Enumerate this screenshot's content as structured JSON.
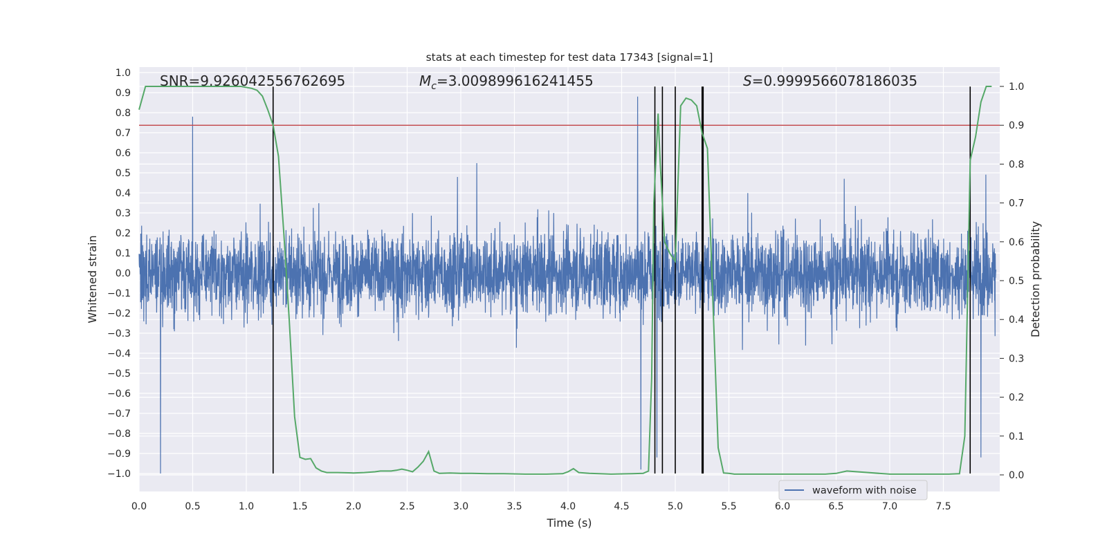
{
  "chart_data": {
    "type": "line",
    "title": "stats at each timestep for test data 17343 [signal=1]",
    "xlabel": "Time (s)",
    "ylabel": "Whitened strain",
    "y2label": "Detection probability",
    "xlim": [
      0.0,
      8.0
    ],
    "ylim": [
      -1.1,
      1.02
    ],
    "y2lim": [
      -0.045,
      1.04
    ],
    "x_ticks": [
      "0.0",
      "0.5",
      "1.0",
      "1.5",
      "2.0",
      "2.5",
      "3.0",
      "3.5",
      "4.0",
      "4.5",
      "5.0",
      "5.5",
      "6.0",
      "6.5",
      "7.0",
      "7.5"
    ],
    "y_ticks": [
      "1.0",
      "0.9",
      "0.8",
      "0.7",
      "0.6",
      "0.5",
      "0.4",
      "0.3",
      "0.2",
      "0.1",
      "0.0",
      "−0.1",
      "−0.2",
      "−0.3",
      "−0.4",
      "−0.5",
      "−0.6",
      "−0.7",
      "−0.8",
      "−0.9",
      "−1.0"
    ],
    "y2_ticks": [
      "1.0",
      "0.9",
      "0.8",
      "0.7",
      "0.6",
      "0.5",
      "0.4",
      "0.3",
      "0.2",
      "0.1",
      "0.0"
    ],
    "annotations": {
      "snr": "SNR=9.926042556762695",
      "mc_symbol": "M",
      "mc_sub": "c",
      "mc_value": "=3.009899616241455",
      "s_symbol": "S",
      "s_value": "=0.9999566078186035"
    },
    "legend": {
      "position": "lower-right",
      "label": "waveform with noise"
    },
    "threshold": {
      "y2": 0.9,
      "color": "#c44e52"
    },
    "vlines_x": [
      1.25,
      4.81,
      4.88,
      5.0,
      5.25,
      5.26,
      7.75
    ],
    "waveform": {
      "name": "waveform with noise",
      "color": "#4c72b0",
      "description": "dense whitened strain noise, mostly within ±0.5 with spikes to ±1.0",
      "noted_extremes": [
        [
          0.2,
          -1.0
        ],
        [
          0.5,
          0.78
        ],
        [
          4.65,
          0.88
        ],
        [
          4.68,
          -0.98
        ],
        [
          4.83,
          -0.92
        ],
        [
          5.25,
          -0.82
        ],
        [
          7.85,
          -0.92
        ]
      ]
    },
    "series": [
      {
        "name": "Detection probability",
        "color": "#55a868",
        "x": [
          0.0,
          0.06,
          0.2,
          0.4,
          0.6,
          0.8,
          0.95,
          1.05,
          1.1,
          1.15,
          1.2,
          1.25,
          1.3,
          1.35,
          1.4,
          1.45,
          1.5,
          1.55,
          1.6,
          1.65,
          1.7,
          1.75,
          1.85,
          2.0,
          2.1,
          2.2,
          2.25,
          2.35,
          2.4,
          2.45,
          2.5,
          2.55,
          2.6,
          2.65,
          2.7,
          2.75,
          2.8,
          2.9,
          3.0,
          3.1,
          3.25,
          3.4,
          3.6,
          3.8,
          3.95,
          4.0,
          4.05,
          4.1,
          4.2,
          4.4,
          4.6,
          4.7,
          4.75,
          4.78,
          4.8,
          4.84,
          4.86,
          4.9,
          4.95,
          5.0,
          5.05,
          5.1,
          5.15,
          5.2,
          5.25,
          5.3,
          5.4,
          5.45,
          5.5,
          5.55,
          5.7,
          6.0,
          6.4,
          6.5,
          6.6,
          7.0,
          7.4,
          7.5,
          7.55,
          7.65,
          7.7,
          7.75,
          7.8,
          7.85,
          7.9,
          7.95
        ],
        "values": [
          0.94,
          1.0,
          1.0,
          1.0,
          1.0,
          1.0,
          1.0,
          0.995,
          0.99,
          0.975,
          0.94,
          0.9,
          0.82,
          0.62,
          0.4,
          0.15,
          0.045,
          0.04,
          0.042,
          0.018,
          0.01,
          0.006,
          0.006,
          0.005,
          0.006,
          0.008,
          0.01,
          0.01,
          0.012,
          0.015,
          0.012,
          0.008,
          0.02,
          0.035,
          0.06,
          0.01,
          0.004,
          0.005,
          0.004,
          0.004,
          0.003,
          0.003,
          0.002,
          0.002,
          0.003,
          0.008,
          0.016,
          0.006,
          0.004,
          0.002,
          0.003,
          0.004,
          0.01,
          0.25,
          0.7,
          0.93,
          0.8,
          0.6,
          0.57,
          0.55,
          0.95,
          0.97,
          0.965,
          0.95,
          0.88,
          0.84,
          0.07,
          0.005,
          0.004,
          0.002,
          0.002,
          0.002,
          0.002,
          0.004,
          0.01,
          0.002,
          0.002,
          0.002,
          0.002,
          0.003,
          0.1,
          0.81,
          0.87,
          0.96,
          1.0,
          1.0
        ]
      }
    ]
  }
}
